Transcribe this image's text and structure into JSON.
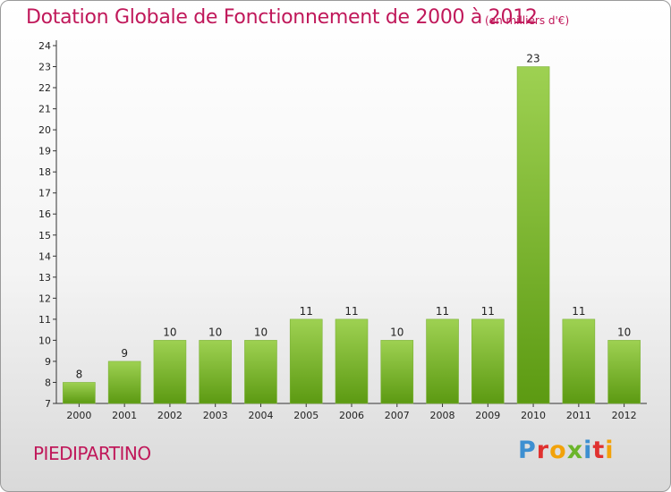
{
  "header": {
    "title": "Dotation Globale de Fonctionnement de 2000 à 2012",
    "subtitle": "(en milliers d'€)"
  },
  "footer": {
    "commune": "PIEDIPARTINO",
    "logo_letters": [
      "P",
      "r",
      "o",
      "x",
      "i",
      "t",
      "i"
    ],
    "logo_colors": [
      "#3d8fd1",
      "#e0312f",
      "#f2a20a",
      "#6bb52a",
      "#3d8fd1",
      "#e0312f",
      "#f2a20a"
    ]
  },
  "colors": {
    "title": "#c0185a",
    "bar_light": "#9ed152",
    "bar_dark": "#5c9a12"
  },
  "chart_data": {
    "type": "bar",
    "title": "Dotation Globale de Fonctionnement de 2000 à 2012",
    "subtitle": "(en milliers d'€)",
    "categories": [
      "2000",
      "2001",
      "2002",
      "2003",
      "2004",
      "2005",
      "2006",
      "2007",
      "2008",
      "2009",
      "2010",
      "2011",
      "2012"
    ],
    "values": [
      8,
      9,
      10,
      10,
      10,
      11,
      11,
      10,
      11,
      11,
      23,
      11,
      10
    ],
    "ylim": [
      7,
      24
    ],
    "yticks": [
      7,
      8,
      9,
      10,
      11,
      12,
      13,
      14,
      15,
      16,
      17,
      18,
      19,
      20,
      21,
      22,
      23,
      24
    ],
    "grid": false,
    "legend": "none"
  }
}
